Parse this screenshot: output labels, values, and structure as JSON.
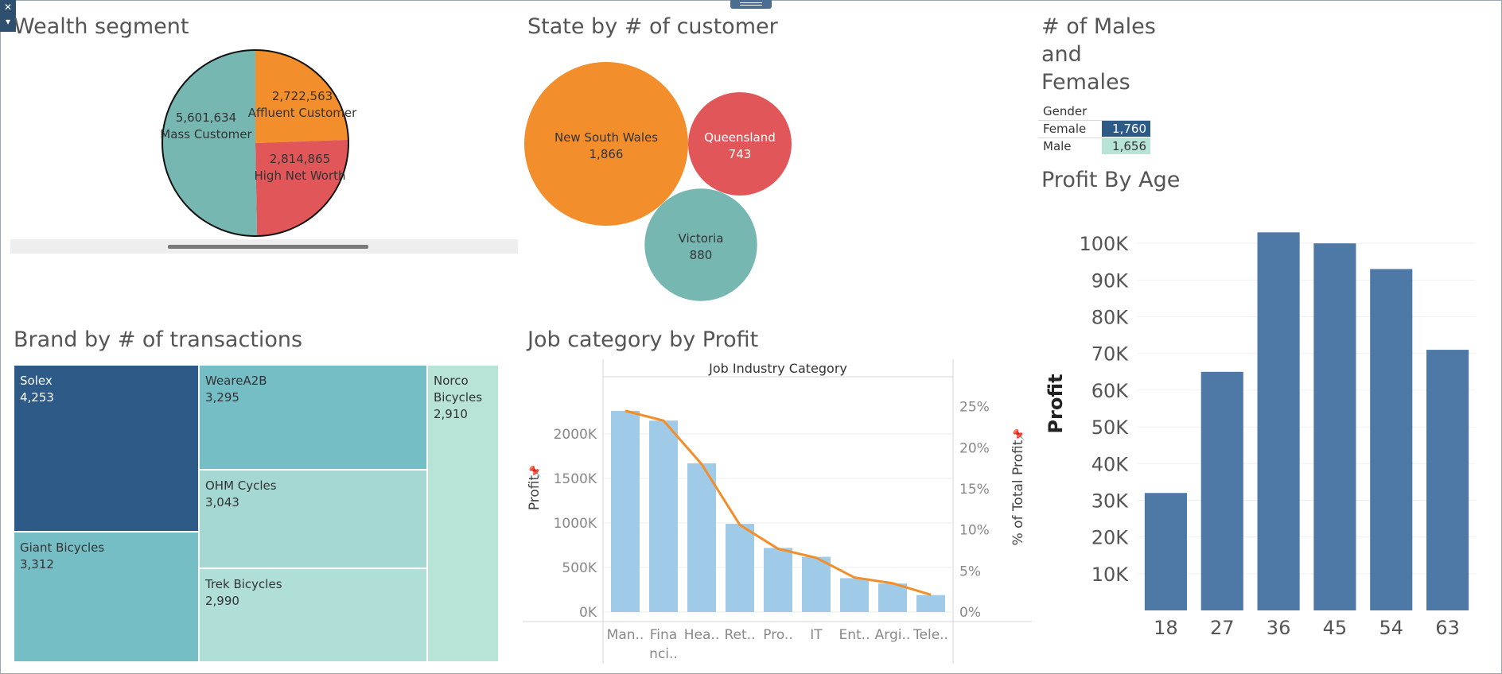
{
  "titles": {
    "wealth": "Wealth segment",
    "state": "State by # of customer",
    "gender_line1": "# of Males",
    "gender_line2": "and",
    "gender_line3": "Females",
    "profit_age": "Profit By Age",
    "brand": "Brand by # of transactions",
    "job": "Job category by Profit"
  },
  "colors": {
    "orange": "#f28e2b",
    "red": "#e15759",
    "teal": "#76b7b2",
    "dark_blue": "#2d5a87",
    "steel_blue": "#4e79a7",
    "light_blue": "#a0cbe8",
    "light_teal": "#b7e4d6"
  },
  "chart_data": [
    {
      "id": "wealth",
      "type": "pie",
      "slices": [
        {
          "label": "Mass Customer",
          "value": 5601634,
          "display": "5,601,634",
          "color": "#76b7b2"
        },
        {
          "label": "Affluent Customer",
          "value": 2722563,
          "display": "2,722,563",
          "color": "#f28e2b"
        },
        {
          "label": "High Net Worth",
          "value": 2814865,
          "display": "2,814,865",
          "color": "#e15759"
        }
      ]
    },
    {
      "id": "state",
      "type": "bubble",
      "bubbles": [
        {
          "label": "New South Wales",
          "value": 1866,
          "display": "1,866",
          "color": "#f28e2b",
          "text_color": "#333333"
        },
        {
          "label": "Queensland",
          "value": 743,
          "display": "743",
          "color": "#e15759",
          "text_color": "#ffffff"
        },
        {
          "label": "Victoria",
          "value": 880,
          "display": "880",
          "color": "#76b7b2",
          "text_color": "#333333"
        }
      ]
    },
    {
      "id": "gender",
      "type": "table",
      "header": "Gender",
      "rows": [
        {
          "label": "Female",
          "value": 1760,
          "display": "1,760",
          "bg": "#2d5a87",
          "fg": "#ffffff"
        },
        {
          "label": "Male",
          "value": 1656,
          "display": "1,656",
          "bg": "#b7e4d6",
          "fg": "#333333"
        }
      ]
    },
    {
      "id": "profit_age",
      "type": "bar",
      "ylabel": "Profit",
      "categories": [
        "18",
        "27",
        "36",
        "45",
        "54",
        "63"
      ],
      "values": [
        32000,
        65000,
        103000,
        100000,
        93000,
        71000
      ],
      "ylim": [
        0,
        110000
      ],
      "yticks": [
        10000,
        20000,
        30000,
        40000,
        50000,
        60000,
        70000,
        80000,
        90000,
        100000
      ],
      "ytick_labels": [
        "10K",
        "20K",
        "30K",
        "40K",
        "50K",
        "60K",
        "70K",
        "80K",
        "90K",
        "100K"
      ],
      "color": "#4e79a7"
    },
    {
      "id": "brand",
      "type": "treemap",
      "items": [
        {
          "label": "Solex",
          "value": 4253,
          "display": "4,253",
          "color": "#2d5a87",
          "text_color": "#ffffff"
        },
        {
          "label": "Giant Bicycles",
          "value": 3312,
          "display": "3,312",
          "color": "#76bec6",
          "text_color": "#333333"
        },
        {
          "label": "WeareA2B",
          "value": 3295,
          "display": "3,295",
          "color": "#76bec6",
          "text_color": "#333333"
        },
        {
          "label": "OHM Cycles",
          "value": 3043,
          "display": "3,043",
          "color": "#a5d8d3",
          "text_color": "#333333"
        },
        {
          "label": "Trek Bicycles",
          "value": 2990,
          "display": "2,990",
          "color": "#b0dfd8",
          "text_color": "#333333"
        },
        {
          "label_lines": [
            "Norco",
            "Bicycles"
          ],
          "label": "Norco Bicycles",
          "value": 2910,
          "display": "2,910",
          "color": "#b7e4d6",
          "text_color": "#333333"
        }
      ]
    },
    {
      "id": "job",
      "type": "bar",
      "header": "Job Industry Category",
      "ylabel": "Profit",
      "y2label": "% of Total Profit",
      "categories": [
        "Man..",
        "Fina nci..",
        "Hea..",
        "Ret..",
        "Pro..",
        "IT",
        "Ent..",
        "Argi..",
        "Tele.."
      ],
      "category_lines": [
        [
          "Man.."
        ],
        [
          "Fina",
          "nci.."
        ],
        [
          "Hea.."
        ],
        [
          "Ret.."
        ],
        [
          "Pro.."
        ],
        [
          "IT"
        ],
        [
          "Ent.."
        ],
        [
          "Argi.."
        ],
        [
          "Tele.."
        ]
      ],
      "values": [
        2260000,
        2150000,
        1670000,
        990000,
        720000,
        620000,
        380000,
        320000,
        190000
      ],
      "pct_values": [
        24.5,
        23.3,
        18.0,
        10.6,
        7.7,
        6.6,
        4.2,
        3.5,
        2.1
      ],
      "ylim": [
        0,
        2500000
      ],
      "y2lim": [
        0,
        27.1
      ],
      "yticks": [
        0,
        500000,
        1000000,
        1500000,
        2000000
      ],
      "ytick_labels": [
        "0K",
        "500K",
        "1000K",
        "1500K",
        "2000K"
      ],
      "y2ticks": [
        0,
        5,
        10,
        15,
        20,
        25
      ],
      "y2tick_labels": [
        "0%",
        "5%",
        "10%",
        "15%",
        "20%",
        "25%"
      ],
      "bar_color": "#a0cbe8",
      "line_color": "#f28e2b"
    }
  ]
}
